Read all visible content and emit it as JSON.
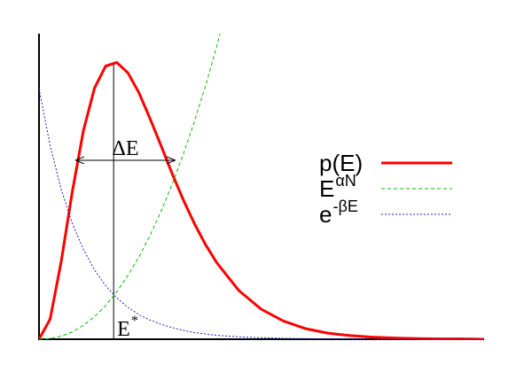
{
  "chart_data": {
    "type": "line",
    "x": [
      0,
      0.25,
      0.5,
      0.75,
      1,
      1.25,
      1.5,
      1.75,
      2,
      2.25,
      2.5,
      2.75,
      3,
      3.25,
      3.5,
      3.75,
      4,
      4.5,
      5,
      5.5,
      6,
      6.5,
      7,
      7.5,
      8,
      8.5,
      9,
      9.5,
      10
    ],
    "xlim": [
      0,
      10
    ],
    "ylim": [
      0,
      1
    ],
    "series": [
      {
        "name": "p(E)",
        "color": "#ff0000",
        "style": "solid",
        "values": [
          0,
          0.066,
          0.256,
          0.486,
          0.687,
          0.827,
          0.899,
          0.911,
          0.877,
          0.811,
          0.726,
          0.636,
          0.544,
          0.458,
          0.38,
          0.311,
          0.252,
          0.16,
          0.099,
          0.06,
          0.035,
          0.02,
          0.012,
          0.007,
          0.004,
          0.002,
          0.001,
          0.001,
          0
        ]
      },
      {
        "name": "E",
        "name_sup": "αN",
        "color": "#00c000",
        "style": "dashed",
        "values": [
          0,
          0.002,
          0.01,
          0.024,
          0.046,
          0.074,
          0.111,
          0.156,
          0.21,
          0.271,
          0.342,
          0.422,
          0.511,
          0.61,
          0.718,
          0.835,
          0.963,
          1.247,
          null,
          null,
          null,
          null,
          null,
          null,
          null,
          null,
          null,
          null,
          null
        ]
      },
      {
        "name": "e",
        "name_sup": "-βE",
        "color": "#2020c0",
        "style": "dotted",
        "values": [
          0.825,
          0.638,
          0.493,
          0.381,
          0.295,
          0.228,
          0.176,
          0.136,
          0.105,
          0.081,
          0.063,
          0.049,
          0.038,
          0.029,
          0.022,
          0.017,
          0.013,
          0.008,
          0.005,
          0.003,
          0.002,
          0.001,
          0.001,
          0,
          0,
          0,
          0,
          0,
          0
        ]
      }
    ],
    "annotations": [
      {
        "text": "ΔE",
        "x_start": 0.82,
        "x_end": 3.07,
        "y": 0.589
      },
      {
        "text": "E",
        "sup": "*",
        "x": 1.68,
        "y": 0.913
      }
    ],
    "legend": "right"
  }
}
